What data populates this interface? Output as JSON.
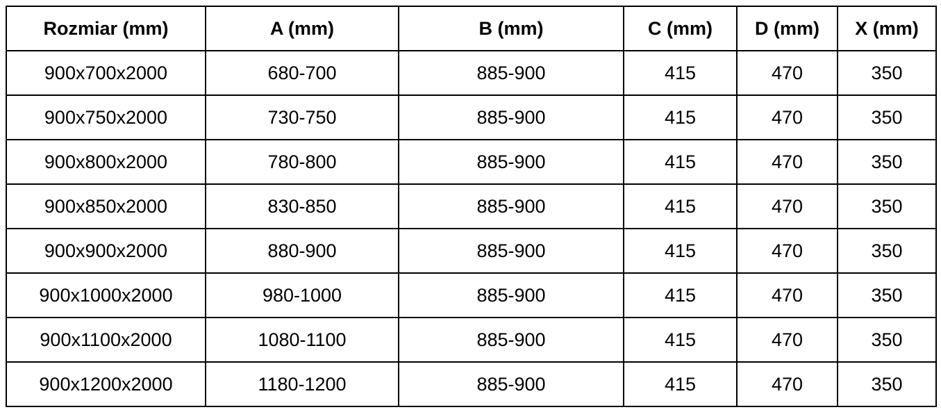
{
  "chart_data": {
    "type": "table",
    "columns": [
      "Rozmiar (mm)",
      "A (mm)",
      "B (mm)",
      "C (mm)",
      "D (mm)",
      "X (mm)"
    ],
    "rows": [
      [
        "900x700x2000",
        "680-700",
        "885-900",
        "415",
        "470",
        "350"
      ],
      [
        "900x750x2000",
        "730-750",
        "885-900",
        "415",
        "470",
        "350"
      ],
      [
        "900x800x2000",
        "780-800",
        "885-900",
        "415",
        "470",
        "350"
      ],
      [
        "900x850x2000",
        "830-850",
        "885-900",
        "415",
        "470",
        "350"
      ],
      [
        "900x900x2000",
        "880-900",
        "885-900",
        "415",
        "470",
        "350"
      ],
      [
        "900x1000x2000",
        "980-1000",
        "885-900",
        "415",
        "470",
        "350"
      ],
      [
        "900x1100x2000",
        "1080-1100",
        "885-900",
        "415",
        "470",
        "350"
      ],
      [
        "900x1200x2000",
        "1180-1200",
        "885-900",
        "415",
        "470",
        "350"
      ]
    ],
    "colors": {
      "border": "#000000",
      "text": "#000000",
      "background": "#ffffff"
    },
    "layout_hints": {
      "header_bold": true,
      "all_cells_centered": true,
      "grid": "full black borders"
    }
  }
}
